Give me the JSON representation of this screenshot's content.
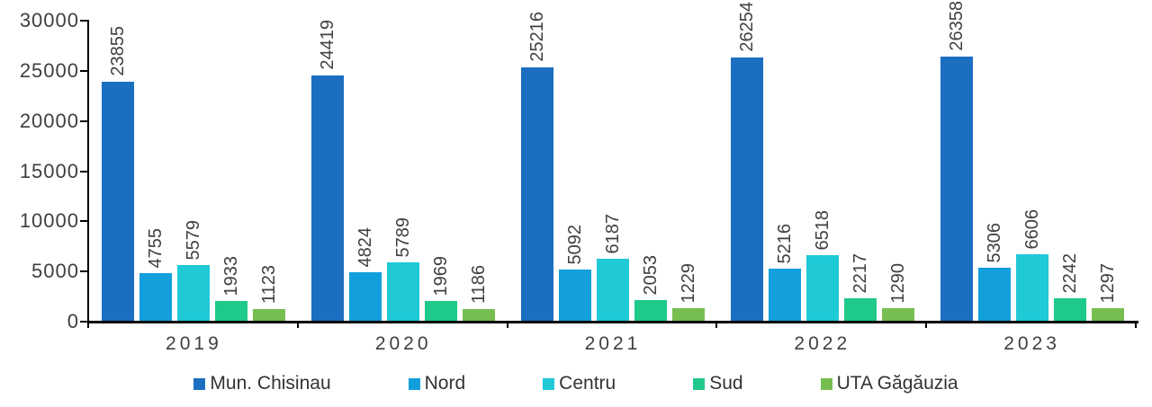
{
  "chart_data": {
    "type": "bar",
    "title": "",
    "xlabel": "",
    "ylabel": "",
    "categories": [
      "2019",
      "2020",
      "2021",
      "2022",
      "2023"
    ],
    "series": [
      {
        "name": "Mun. Chisinau",
        "color": "#1b6ec0",
        "values": [
          23855,
          24419,
          25216,
          26254,
          26358
        ]
      },
      {
        "name": "Nord",
        "color": "#129fdc",
        "values": [
          4755,
          4824,
          5092,
          5216,
          5306
        ]
      },
      {
        "name": "Centru",
        "color": "#1fc9d6",
        "values": [
          5579,
          5789,
          6187,
          6518,
          6606
        ]
      },
      {
        "name": "Sud",
        "color": "#1fc98a",
        "values": [
          1933,
          1969,
          2053,
          2217,
          2242
        ]
      },
      {
        "name": "UTA Găgăuzia",
        "color": "#77be51",
        "values": [
          1123,
          1186,
          1229,
          1290,
          1297
        ]
      }
    ],
    "ylim": [
      0,
      30000
    ],
    "y_ticks": [
      0,
      5000,
      10000,
      15000,
      20000,
      25000,
      30000
    ],
    "y_tick_labels": [
      "0",
      "5000",
      "10000",
      "15000",
      "20000",
      "25000",
      "30000"
    ],
    "grid": false,
    "legend_position": "bottom",
    "bar_value_labels": "rotated 90° counterclockwise above each bar",
    "axis_color": "#000000",
    "text_color": "#3f3f3f"
  }
}
